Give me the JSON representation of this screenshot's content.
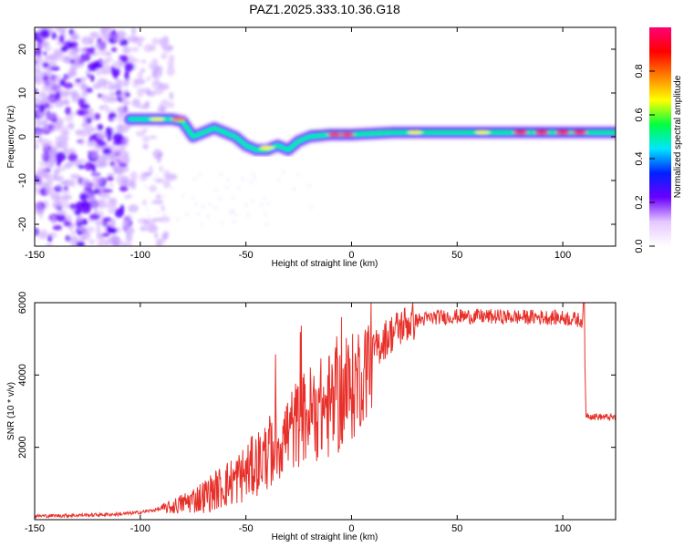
{
  "title": "PAZ1.2025.333.10.36.G18",
  "chart_data": [
    {
      "type": "heatmap",
      "name": "spectrogram",
      "xlabel": "Height of straight line (km)",
      "ylabel": "Frequency (Hz)",
      "xlim": [
        -150,
        125
      ],
      "ylim": [
        -25,
        25
      ],
      "xticks": [
        -150,
        -100,
        -50,
        0,
        50,
        100
      ],
      "yticks": [
        20,
        10,
        0,
        -10,
        -20
      ],
      "colorbar": {
        "label": "Normalized spectral amplitude",
        "range": [
          0,
          1
        ],
        "ticks": [
          0.0,
          0.2,
          0.4,
          0.6,
          0.8
        ],
        "colors": [
          "#ffffff",
          "#e5c8ff",
          "#6a00ff",
          "#0020ff",
          "#00e5ff",
          "#00ff40",
          "#ffff00",
          "#ff8000",
          "#ff0000",
          "#ff0077"
        ]
      },
      "ridge": {
        "x": [
          -105,
          -95,
          -85,
          -80,
          -75,
          -70,
          -65,
          -60,
          -55,
          -50,
          -45,
          -40,
          -35,
          -30,
          -25,
          -20,
          -10,
          0,
          20,
          50,
          80,
          110,
          125
        ],
        "freq": [
          4,
          4,
          4,
          3.5,
          0,
          1,
          2,
          1,
          0,
          -2,
          -3,
          -3,
          -2,
          -3,
          -1,
          0,
          0.5,
          0.5,
          1,
          1,
          1,
          1,
          1
        ]
      },
      "noise_region_x": [
        -150,
        -85
      ]
    },
    {
      "type": "line",
      "name": "snr",
      "xlabel": "Height of straight line (km)",
      "ylabel": "SNR (10 * v/v)",
      "xlim": [
        -150,
        125
      ],
      "ylim": [
        0,
        6000
      ],
      "xticks": [
        -150,
        -100,
        -50,
        0,
        50,
        100
      ],
      "yticks": [
        2000,
        4000,
        6000
      ],
      "color": "#e8302a",
      "x": [
        -150,
        -130,
        -110,
        -100,
        -90,
        -85,
        -80,
        -75,
        -70,
        -65,
        -60,
        -55,
        -50,
        -45,
        -40,
        -35,
        -30,
        -25,
        -20,
        -15,
        -10,
        -5,
        0,
        5,
        10,
        15,
        20,
        25,
        30,
        35,
        40,
        50,
        60,
        70,
        80,
        90,
        100,
        105,
        110,
        111,
        115,
        125
      ],
      "y": [
        100,
        120,
        150,
        200,
        300,
        350,
        450,
        550,
        650,
        800,
        950,
        1100,
        1300,
        1550,
        1800,
        2100,
        2400,
        2700,
        2950,
        3050,
        3150,
        3350,
        3600,
        4100,
        4600,
        4950,
        5200,
        5400,
        5500,
        5550,
        5600,
        5620,
        5620,
        5610,
        5600,
        5600,
        5580,
        5550,
        5500,
        2900,
        2850,
        2820
      ]
    }
  ]
}
